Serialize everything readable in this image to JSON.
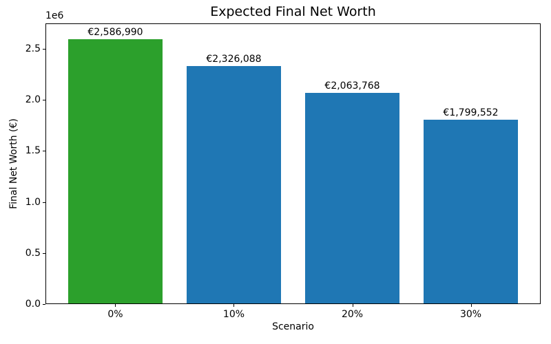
{
  "chart_data": {
    "type": "bar",
    "title": "Expected Final Net Worth",
    "xlabel": "Scenario",
    "ylabel": "Final Net Worth (€)",
    "offset_text": "1e6",
    "categories": [
      "0%",
      "10%",
      "20%",
      "30%"
    ],
    "values": [
      2586990,
      2326088,
      2063768,
      1799552
    ],
    "bar_labels": [
      "€2,586,990",
      "€2,326,088",
      "€2,063,768",
      "€1,799,552"
    ],
    "bar_colors": [
      "#2ca02c",
      "#1f77b4",
      "#1f77b4",
      "#1f77b4"
    ],
    "ylim": [
      0,
      2750000
    ],
    "yticks": [
      0,
      500000,
      1000000,
      1500000,
      2000000,
      2500000
    ],
    "ytick_labels": [
      "0.0",
      "0.5",
      "1.0",
      "1.5",
      "2.0",
      "2.5"
    ],
    "grid": false,
    "legend": "none",
    "background": "#ffffff",
    "text_color": "#000000"
  }
}
